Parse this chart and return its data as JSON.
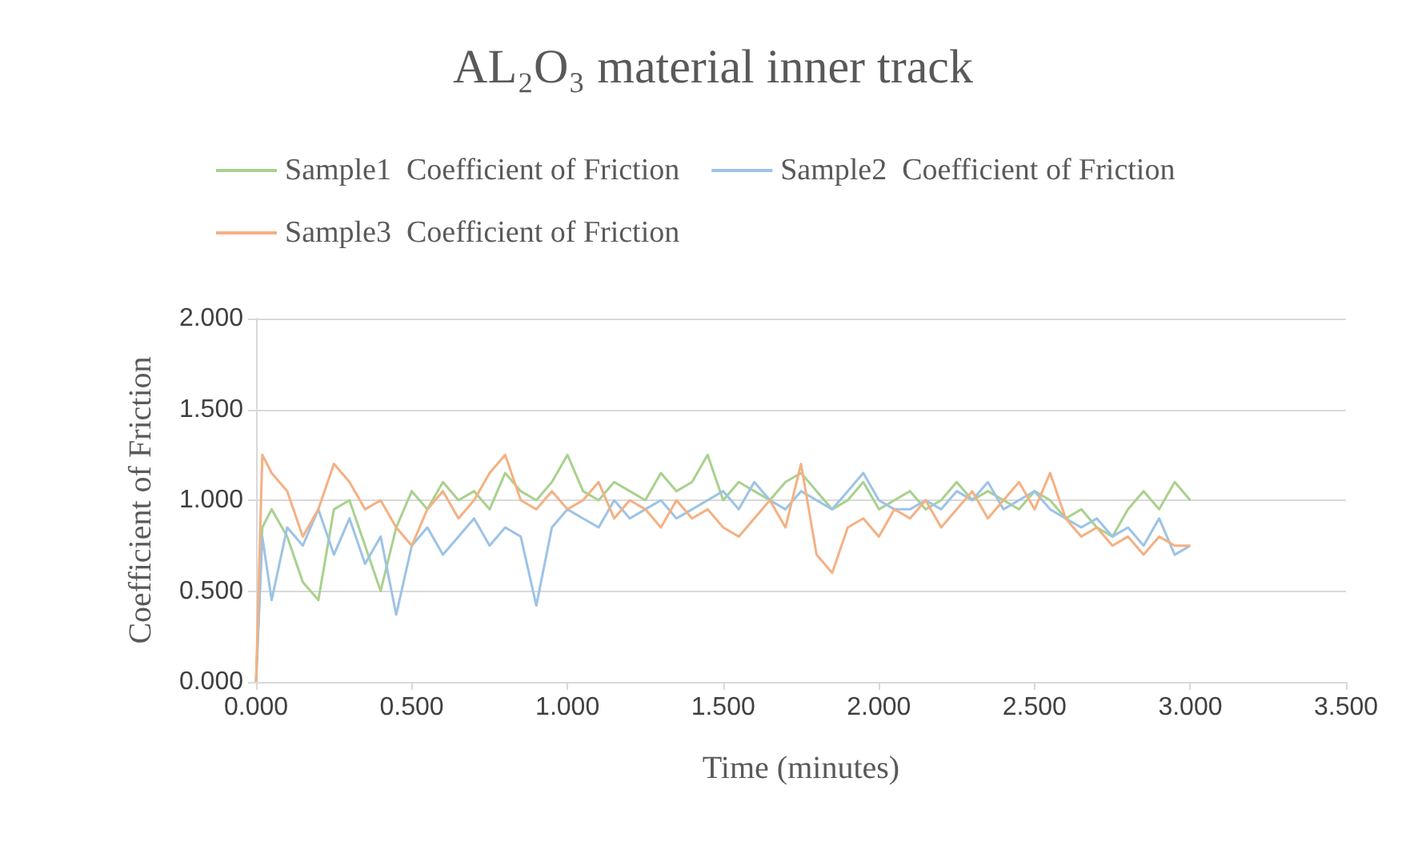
{
  "chart_data": {
    "type": "line",
    "title": "AL₂O₃ material inner track",
    "xlabel": "Time (minutes)",
    "ylabel": "Coefficient of Friction",
    "x": [
      0,
      0.02,
      0.05,
      0.1,
      0.15,
      0.2,
      0.25,
      0.3,
      0.35,
      0.4,
      0.45,
      0.5,
      0.55,
      0.6,
      0.65,
      0.7,
      0.75,
      0.8,
      0.85,
      0.9,
      0.95,
      1.0,
      1.05,
      1.1,
      1.15,
      1.2,
      1.25,
      1.3,
      1.35,
      1.4,
      1.45,
      1.5,
      1.55,
      1.6,
      1.65,
      1.7,
      1.75,
      1.8,
      1.85,
      1.9,
      1.95,
      2.0,
      2.05,
      2.1,
      2.15,
      2.2,
      2.25,
      2.3,
      2.35,
      2.4,
      2.45,
      2.5,
      2.55,
      2.6,
      2.65,
      2.7,
      2.75,
      2.8,
      2.85,
      2.9,
      2.95,
      3.0
    ],
    "series": [
      {
        "name": "Sample1  Coefficient of Friction",
        "color": "#a9d18e",
        "values": [
          0,
          0.85,
          0.95,
          0.8,
          0.55,
          0.45,
          0.95,
          1.0,
          0.75,
          0.5,
          0.85,
          1.05,
          0.95,
          1.1,
          1.0,
          1.05,
          0.95,
          1.15,
          1.05,
          1.0,
          1.1,
          1.25,
          1.05,
          1.0,
          1.1,
          1.05,
          1.0,
          1.15,
          1.05,
          1.1,
          1.25,
          1.0,
          1.1,
          1.05,
          1.0,
          1.1,
          1.15,
          1.05,
          0.95,
          1.0,
          1.1,
          0.95,
          1.0,
          1.05,
          0.95,
          1.0,
          1.1,
          1.0,
          1.05,
          1.0,
          0.95,
          1.05,
          1.0,
          0.9,
          0.95,
          0.85,
          0.8,
          0.95,
          1.05,
          0.95,
          1.1,
          1.0
        ]
      },
      {
        "name": "Sample2  Coefficient of Friction",
        "color": "#9dc3e6",
        "values": [
          0,
          0.8,
          0.45,
          0.85,
          0.75,
          0.95,
          0.7,
          0.9,
          0.65,
          0.8,
          0.37,
          0.75,
          0.85,
          0.7,
          0.8,
          0.9,
          0.75,
          0.85,
          0.8,
          0.42,
          0.85,
          0.95,
          0.9,
          0.85,
          1.0,
          0.9,
          0.95,
          1.0,
          0.9,
          0.95,
          1.0,
          1.05,
          0.95,
          1.1,
          1.0,
          0.95,
          1.05,
          1.0,
          0.95,
          1.05,
          1.15,
          1.0,
          0.95,
          0.95,
          1.0,
          0.95,
          1.05,
          1.0,
          1.1,
          0.95,
          1.0,
          1.05,
          0.95,
          0.9,
          0.85,
          0.9,
          0.8,
          0.85,
          0.75,
          0.9,
          0.7,
          0.75
        ]
      },
      {
        "name": "Sample3  Coefficient of Friction",
        "color": "#f4b183",
        "values": [
          0,
          1.25,
          1.15,
          1.05,
          0.8,
          0.95,
          1.2,
          1.1,
          0.95,
          1.0,
          0.85,
          0.75,
          0.95,
          1.05,
          0.9,
          1.0,
          1.15,
          1.25,
          1.0,
          0.95,
          1.05,
          0.95,
          1.0,
          1.1,
          0.9,
          1.0,
          0.95,
          0.85,
          1.0,
          0.9,
          0.95,
          0.85,
          0.8,
          0.9,
          1.0,
          0.85,
          1.2,
          0.7,
          0.6,
          0.85,
          0.9,
          0.8,
          0.95,
          0.9,
          1.0,
          0.85,
          0.95,
          1.05,
          0.9,
          1.0,
          1.1,
          0.95,
          1.15,
          0.9,
          0.8,
          0.85,
          0.75,
          0.8,
          0.7,
          0.8,
          0.75,
          0.75
        ]
      }
    ],
    "xlim": [
      0,
      3.5
    ],
    "xticks": [
      {
        "value": 0,
        "label": "0.000"
      },
      {
        "value": 0.5,
        "label": "0.500"
      },
      {
        "value": 1,
        "label": "1.000"
      },
      {
        "value": 1.5,
        "label": "1.500"
      },
      {
        "value": 2,
        "label": "2.000"
      },
      {
        "value": 2.5,
        "label": "2.500"
      },
      {
        "value": 3,
        "label": "3.000"
      },
      {
        "value": 3.5,
        "label": "3.500"
      }
    ],
    "ylim": [
      0,
      2
    ],
    "yticks": [
      {
        "value": 0,
        "label": "0.000"
      },
      {
        "value": 0.5,
        "label": "0.500"
      },
      {
        "value": 1,
        "label": "1.000"
      },
      {
        "value": 1.5,
        "label": "1.500"
      },
      {
        "value": 2,
        "label": "2.000"
      }
    ],
    "grid": "y",
    "legend": "top",
    "marker": "none",
    "line_style": "solid"
  }
}
